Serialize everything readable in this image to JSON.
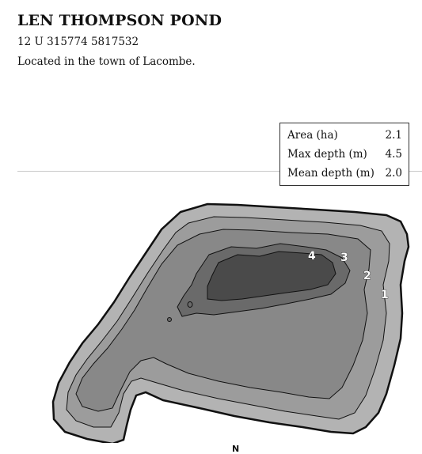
{
  "header": {
    "title": "LEN THOMPSON POND",
    "coordinates": "12 U 315774 5817532",
    "location": "Located in the town of Lacombe."
  },
  "stats": [
    {
      "label": "Area (ha)",
      "value": "2.1"
    },
    {
      "label": "Max depth (m)",
      "value": "4.5"
    },
    {
      "label": "Mean depth (m)",
      "value": "2.0"
    }
  ],
  "map": {
    "contour_labels": [
      "1",
      "2",
      "3",
      "4"
    ],
    "north_label": "N",
    "colors": {
      "shore": "#b3b3b3",
      "depth_1": "#9c9c9c",
      "depth_2": "#888888",
      "depth_3": "#6a6a6a",
      "depth_4": "#4a4a4a",
      "outline": "#111111"
    }
  }
}
